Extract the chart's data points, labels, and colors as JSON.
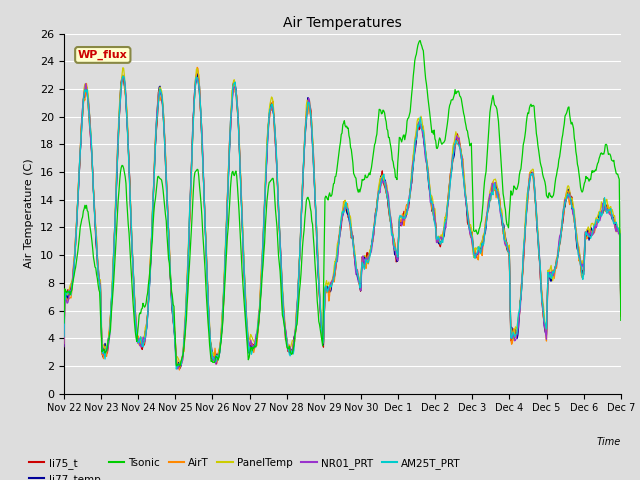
{
  "title": "Air Temperatures",
  "ylabel": "Air Temperature (C)",
  "xlabel": "Time",
  "ylim": [
    0,
    26
  ],
  "yticks": [
    0,
    2,
    4,
    6,
    8,
    10,
    12,
    14,
    16,
    18,
    20,
    22,
    24,
    26
  ],
  "bg_color": "#dddddd",
  "plot_bg_color": "#dddddd",
  "grid_color": "#ffffff",
  "series": [
    {
      "name": "li75_t",
      "color": "#cc0000"
    },
    {
      "name": "li77_temp",
      "color": "#000099"
    },
    {
      "name": "Tsonic",
      "color": "#00cc00"
    },
    {
      "name": "AirT",
      "color": "#ff8800"
    },
    {
      "name": "PanelTemp",
      "color": "#cccc00"
    },
    {
      "name": "NR01_PRT",
      "color": "#9933cc"
    },
    {
      "name": "AM25T_PRT",
      "color": "#00cccc"
    }
  ],
  "wp_flux_box_color": "#ffffcc",
  "wp_flux_text_color": "#cc0000",
  "wp_flux_border_color": "#888844"
}
